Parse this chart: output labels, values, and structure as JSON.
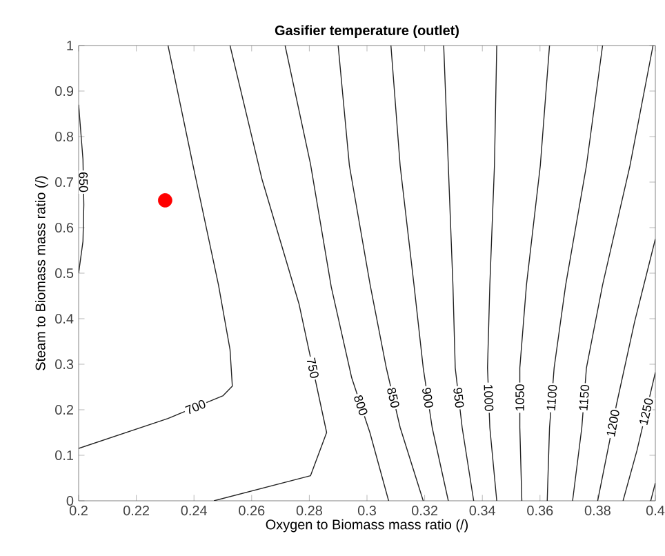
{
  "chart_data": {
    "type": "line",
    "title": "Gasifier temperature (outlet)",
    "xlabel": "Oxygen to Biomass mass ratio (/)",
    "ylabel": "Steam to Biomass mass ratio (/)",
    "xlim": [
      0.2,
      0.4
    ],
    "ylim": [
      0,
      1
    ],
    "xticks": [
      {
        "value": 0.2,
        "label": "0.2"
      },
      {
        "value": 0.22,
        "label": "0.22"
      },
      {
        "value": 0.24,
        "label": "0.24"
      },
      {
        "value": 0.26,
        "label": "0.26"
      },
      {
        "value": 0.28,
        "label": "0.28"
      },
      {
        "value": 0.3,
        "label": "0.3"
      },
      {
        "value": 0.32,
        "label": "0.32"
      },
      {
        "value": 0.34,
        "label": "0.34"
      },
      {
        "value": 0.36,
        "label": "0.36"
      },
      {
        "value": 0.38,
        "label": "0.38"
      },
      {
        "value": 0.4,
        "label": "0.4"
      }
    ],
    "yticks": [
      {
        "value": 0,
        "label": "0"
      },
      {
        "value": 0.1,
        "label": "0.1"
      },
      {
        "value": 0.2,
        "label": "0.2"
      },
      {
        "value": 0.3,
        "label": "0.3"
      },
      {
        "value": 0.4,
        "label": "0.4"
      },
      {
        "value": 0.5,
        "label": "0.5"
      },
      {
        "value": 0.6,
        "label": "0.6"
      },
      {
        "value": 0.7,
        "label": "0.7"
      },
      {
        "value": 0.8,
        "label": "0.8"
      },
      {
        "value": 0.9,
        "label": "0.9"
      },
      {
        "value": 1,
        "label": "1"
      }
    ],
    "grid": false,
    "legend": false,
    "marker": "none",
    "line_style": "solid",
    "series": [
      {
        "name": "650",
        "color": "#222222",
        "x": [
          0.2,
          0.2015,
          0.2018,
          0.2015,
          0.2
        ],
        "values": [
          0.87,
          0.75,
          0.65,
          0.57,
          0.5
        ]
      },
      {
        "name": "700",
        "color": "#222222",
        "x": [
          0.231,
          0.2397,
          0.2485,
          0.2525,
          0.2533,
          0.2501,
          0.231,
          0.2
        ],
        "values": [
          1,
          0.736,
          0.474,
          0.332,
          0.252,
          0.231,
          0.181,
          0.115
        ]
      },
      {
        "name": "750",
        "color": "#222222",
        "x": [
          0.2525,
          0.2636,
          0.2764,
          0.286,
          0.2804,
          0.2469
        ],
        "values": [
          1,
          0.706,
          0.433,
          0.15,
          0.055,
          0
        ]
      },
      {
        "name": "800",
        "color": "#222222",
        "x": [
          0.2716,
          0.2804,
          0.2876,
          0.2947,
          0.301,
          0.3075
        ],
        "values": [
          1,
          0.74,
          0.47,
          0.27,
          0.15,
          0
        ]
      },
      {
        "name": "850",
        "color": "#222222",
        "x": [
          0.29,
          0.2939,
          0.3011,
          0.3067,
          0.3115,
          0.3195
        ],
        "values": [
          1,
          0.736,
          0.474,
          0.292,
          0.161,
          0
        ]
      },
      {
        "name": "900",
        "color": "#222222",
        "x": [
          0.3083,
          0.3115,
          0.3163,
          0.3195,
          0.3226,
          0.3282
        ],
        "values": [
          1,
          0.736,
          0.474,
          0.292,
          0.161,
          0
        ]
      },
      {
        "name": "950",
        "color": "#222222",
        "x": [
          0.3266,
          0.3282,
          0.3298,
          0.3306,
          0.333,
          0.337
        ],
        "values": [
          1,
          0.736,
          0.474,
          0.292,
          0.161,
          0
        ]
      },
      {
        "name": "1000",
        "color": "#222222",
        "x": [
          0.345,
          0.3442,
          0.3426,
          0.3418,
          0.3426,
          0.345
        ],
        "values": [
          1,
          0.736,
          0.474,
          0.292,
          0.161,
          0
        ]
      },
      {
        "name": "1050",
        "color": "#222222",
        "x": [
          0.3633,
          0.3601,
          0.3553,
          0.353,
          0.353,
          0.3537
        ],
        "values": [
          1,
          0.736,
          0.474,
          0.292,
          0.161,
          0
        ]
      },
      {
        "name": "1100",
        "color": "#222222",
        "x": [
          0.3817,
          0.3761,
          0.3689,
          0.3649,
          0.3633,
          0.3625
        ],
        "values": [
          1,
          0.736,
          0.474,
          0.292,
          0.161,
          0
        ]
      },
      {
        "name": "1150",
        "color": "#222222",
        "x": [
          0.3992,
          0.3912,
          0.3817,
          0.3761,
          0.3745,
          0.3713
        ],
        "values": [
          1,
          0.736,
          0.474,
          0.292,
          0.161,
          0
        ]
      },
      {
        "name": "1200",
        "color": "#222222",
        "x": [
          0.4,
          0.3928,
          0.3865,
          0.3841,
          0.38
        ],
        "values": [
          0.575,
          0.393,
          0.211,
          0.13,
          0
        ]
      },
      {
        "name": "1250",
        "color": "#222222",
        "x": [
          0.4,
          0.3936,
          0.3888
        ],
        "values": [
          0.282,
          0.11,
          0
        ]
      },
      {
        "color": "#222222",
        "x": [
          0.4,
          0.3984
        ],
        "values": [
          0.039,
          0
        ]
      },
      {
        "type": "scatter",
        "color": "#ff0000",
        "marker": "circle",
        "x": [
          0.23
        ],
        "values": [
          0.66
        ]
      }
    ]
  }
}
